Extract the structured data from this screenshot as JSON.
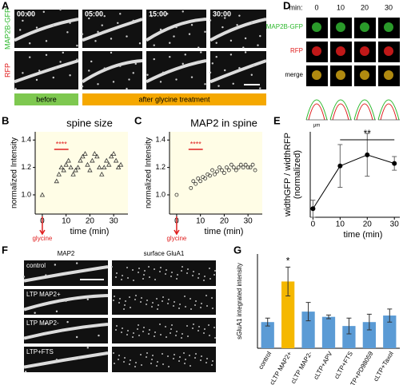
{
  "panel_labels": [
    "A",
    "B",
    "C",
    "D",
    "E",
    "F",
    "G"
  ],
  "panel_A": {
    "timestamps": [
      "00:00",
      "05:00",
      "15:00",
      "30:00"
    ],
    "rows": [
      "MAP2B-GFP",
      "RFP"
    ],
    "phases": [
      "before",
      "after glycine treatment"
    ]
  },
  "panel_D": {
    "header": "min:",
    "times": [
      "0",
      "10",
      "20",
      "30"
    ],
    "rows": [
      "MAP2B-GFP",
      "RFP",
      "merge"
    ],
    "axis_unit": "μm"
  },
  "panel_F": {
    "columns": [
      "MAP2",
      "surface GluA1"
    ],
    "rows": [
      "control",
      "LTP MAP2+",
      "LTP MAP2-",
      "LTP+FTS"
    ]
  },
  "chart_data": [
    {
      "type": "scatter",
      "title": "spine size",
      "xlabel": "time (min)",
      "ylabel": "normalized Intensity",
      "marker": "triangle",
      "color": "#333333",
      "background": "#fffde6",
      "x": [
        0,
        6,
        7,
        8,
        9,
        10,
        11,
        12,
        13,
        14,
        15,
        16,
        17,
        18,
        19,
        20,
        21,
        22,
        23,
        24,
        25,
        26,
        27,
        28,
        29,
        30,
        31,
        32,
        33
      ],
      "values": [
        1.0,
        1.1,
        1.15,
        1.2,
        1.18,
        1.22,
        1.25,
        1.2,
        1.15,
        1.18,
        1.2,
        1.25,
        1.28,
        1.3,
        1.22,
        1.18,
        1.25,
        1.3,
        1.28,
        1.2,
        1.15,
        1.2,
        1.25,
        1.22,
        1.28,
        1.3,
        1.25,
        1.2,
        1.22
      ],
      "xlim": [
        -3,
        36
      ],
      "ylim": [
        0.86,
        1.46
      ],
      "xticks": [
        0,
        10,
        20,
        30
      ],
      "yticks": [
        {
          "value": 1,
          "label": "1.0"
        },
        {
          "value": 1.2,
          "label": "1.2"
        },
        {
          "value": 1.4,
          "label": "1.4"
        }
      ],
      "significance": "****",
      "stimulus": "glycine"
    },
    {
      "type": "scatter",
      "title": "MAP2 in spine",
      "xlabel": "time (min)",
      "ylabel": "normalized Intensity",
      "marker": "circle",
      "color": "#333333",
      "background": "#fffde6",
      "x": [
        0,
        6,
        7,
        8,
        9,
        10,
        11,
        12,
        13,
        14,
        15,
        16,
        17,
        18,
        19,
        20,
        21,
        22,
        23,
        24,
        25,
        26,
        27,
        28,
        29,
        30,
        31,
        32,
        33
      ],
      "values": [
        1.0,
        1.05,
        1.1,
        1.08,
        1.12,
        1.1,
        1.13,
        1.12,
        1.15,
        1.14,
        1.18,
        1.15,
        1.17,
        1.2,
        1.18,
        1.16,
        1.2,
        1.18,
        1.22,
        1.2,
        1.18,
        1.2,
        1.22,
        1.2,
        1.22,
        1.2,
        1.2,
        1.22,
        1.18
      ],
      "xlim": [
        -3,
        36
      ],
      "ylim": [
        0.86,
        1.46
      ],
      "xticks": [
        0,
        10,
        20,
        30
      ],
      "yticks": [
        {
          "value": 1,
          "label": "1.0"
        },
        {
          "value": 1.2,
          "label": "1.2"
        },
        {
          "value": 1.4,
          "label": "1.4"
        }
      ],
      "significance": "****",
      "stimulus": "glycine"
    },
    {
      "type": "line",
      "xlabel": "time (min)",
      "ylabel": [
        "widthGFP / widthRFP",
        "(normalized)"
      ],
      "color": "#000000",
      "x": [
        0,
        10,
        20,
        30
      ],
      "values": [
        1,
        6,
        7.3,
        6.3
      ],
      "errors": [
        1,
        2.5,
        2.5,
        0.8
      ],
      "xlim": [
        -1,
        32
      ],
      "ylim": [
        0,
        10
      ],
      "xticks": [
        0,
        10,
        20,
        30
      ],
      "significance": "**"
    },
    {
      "type": "bar",
      "ylabel": "sGluA1 integrated intensity",
      "categories": [
        "control",
        "cLTP MAP2+",
        "cLTP MAP2-",
        "cLTP+APV",
        "cLTP+FTS",
        "cLTP+PD98059",
        "cLTP+Taxol"
      ],
      "values": [
        1.0,
        2.55,
        1.4,
        1.2,
        0.85,
        1.0,
        1.25
      ],
      "errors": [
        0.15,
        0.55,
        0.35,
        0.07,
        0.3,
        0.3,
        0.25
      ],
      "colors": [
        "#5b9bd5",
        "#f5b800",
        "#5b9bd5",
        "#5b9bd5",
        "#5b9bd5",
        "#5b9bd5",
        "#5b9bd5"
      ],
      "ylim": [
        0,
        3.6
      ],
      "significance": "*"
    }
  ]
}
